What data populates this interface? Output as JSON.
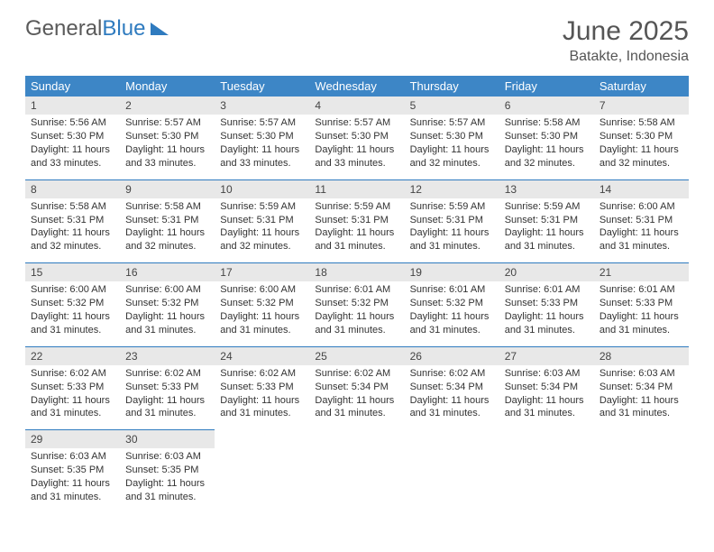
{
  "logo": {
    "text1": "General",
    "text2": "Blue"
  },
  "title": {
    "month": "June 2025",
    "location": "Batakte, Indonesia"
  },
  "colors": {
    "header_bg": "#3d86c6",
    "header_text": "#ffffff",
    "daynum_bg": "#e8e8e8",
    "border": "#2f7bbf",
    "logo_gray": "#5a5a5a",
    "logo_blue": "#2f7bbf",
    "title_text": "#555555",
    "body_text": "#333333",
    "page_bg": "#ffffff"
  },
  "typography": {
    "font_family": "Arial",
    "title_fontsize": 30,
    "location_fontsize": 16,
    "dayheader_fontsize": 13,
    "cell_fontsize": 11
  },
  "calendar": {
    "type": "table",
    "columns": [
      "Sunday",
      "Monday",
      "Tuesday",
      "Wednesday",
      "Thursday",
      "Friday",
      "Saturday"
    ],
    "days": [
      {
        "n": "1",
        "sr": "5:56 AM",
        "ss": "5:30 PM",
        "dl": "11 hours and 33 minutes."
      },
      {
        "n": "2",
        "sr": "5:57 AM",
        "ss": "5:30 PM",
        "dl": "11 hours and 33 minutes."
      },
      {
        "n": "3",
        "sr": "5:57 AM",
        "ss": "5:30 PM",
        "dl": "11 hours and 33 minutes."
      },
      {
        "n": "4",
        "sr": "5:57 AM",
        "ss": "5:30 PM",
        "dl": "11 hours and 33 minutes."
      },
      {
        "n": "5",
        "sr": "5:57 AM",
        "ss": "5:30 PM",
        "dl": "11 hours and 32 minutes."
      },
      {
        "n": "6",
        "sr": "5:58 AM",
        "ss": "5:30 PM",
        "dl": "11 hours and 32 minutes."
      },
      {
        "n": "7",
        "sr": "5:58 AM",
        "ss": "5:30 PM",
        "dl": "11 hours and 32 minutes."
      },
      {
        "n": "8",
        "sr": "5:58 AM",
        "ss": "5:31 PM",
        "dl": "11 hours and 32 minutes."
      },
      {
        "n": "9",
        "sr": "5:58 AM",
        "ss": "5:31 PM",
        "dl": "11 hours and 32 minutes."
      },
      {
        "n": "10",
        "sr": "5:59 AM",
        "ss": "5:31 PM",
        "dl": "11 hours and 32 minutes."
      },
      {
        "n": "11",
        "sr": "5:59 AM",
        "ss": "5:31 PM",
        "dl": "11 hours and 31 minutes."
      },
      {
        "n": "12",
        "sr": "5:59 AM",
        "ss": "5:31 PM",
        "dl": "11 hours and 31 minutes."
      },
      {
        "n": "13",
        "sr": "5:59 AM",
        "ss": "5:31 PM",
        "dl": "11 hours and 31 minutes."
      },
      {
        "n": "14",
        "sr": "6:00 AM",
        "ss": "5:31 PM",
        "dl": "11 hours and 31 minutes."
      },
      {
        "n": "15",
        "sr": "6:00 AM",
        "ss": "5:32 PM",
        "dl": "11 hours and 31 minutes."
      },
      {
        "n": "16",
        "sr": "6:00 AM",
        "ss": "5:32 PM",
        "dl": "11 hours and 31 minutes."
      },
      {
        "n": "17",
        "sr": "6:00 AM",
        "ss": "5:32 PM",
        "dl": "11 hours and 31 minutes."
      },
      {
        "n": "18",
        "sr": "6:01 AM",
        "ss": "5:32 PM",
        "dl": "11 hours and 31 minutes."
      },
      {
        "n": "19",
        "sr": "6:01 AM",
        "ss": "5:32 PM",
        "dl": "11 hours and 31 minutes."
      },
      {
        "n": "20",
        "sr": "6:01 AM",
        "ss": "5:33 PM",
        "dl": "11 hours and 31 minutes."
      },
      {
        "n": "21",
        "sr": "6:01 AM",
        "ss": "5:33 PM",
        "dl": "11 hours and 31 minutes."
      },
      {
        "n": "22",
        "sr": "6:02 AM",
        "ss": "5:33 PM",
        "dl": "11 hours and 31 minutes."
      },
      {
        "n": "23",
        "sr": "6:02 AM",
        "ss": "5:33 PM",
        "dl": "11 hours and 31 minutes."
      },
      {
        "n": "24",
        "sr": "6:02 AM",
        "ss": "5:33 PM",
        "dl": "11 hours and 31 minutes."
      },
      {
        "n": "25",
        "sr": "6:02 AM",
        "ss": "5:34 PM",
        "dl": "11 hours and 31 minutes."
      },
      {
        "n": "26",
        "sr": "6:02 AM",
        "ss": "5:34 PM",
        "dl": "11 hours and 31 minutes."
      },
      {
        "n": "27",
        "sr": "6:03 AM",
        "ss": "5:34 PM",
        "dl": "11 hours and 31 minutes."
      },
      {
        "n": "28",
        "sr": "6:03 AM",
        "ss": "5:34 PM",
        "dl": "11 hours and 31 minutes."
      },
      {
        "n": "29",
        "sr": "6:03 AM",
        "ss": "5:35 PM",
        "dl": "11 hours and 31 minutes."
      },
      {
        "n": "30",
        "sr": "6:03 AM",
        "ss": "5:35 PM",
        "dl": "11 hours and 31 minutes."
      }
    ],
    "labels": {
      "sunrise": "Sunrise:",
      "sunset": "Sunset:",
      "daylight": "Daylight:"
    }
  }
}
